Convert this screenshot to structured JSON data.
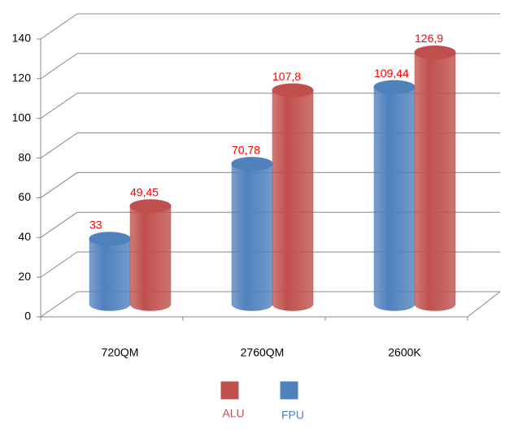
{
  "chart_data": {
    "type": "bar3d",
    "categories": [
      "720QM",
      "2760QM",
      "2600K"
    ],
    "series": [
      {
        "name": "FPU",
        "color": "#4f81bd",
        "values": [
          33,
          70.78,
          109.44
        ],
        "value_labels": [
          "33",
          "70,78",
          "109,44"
        ]
      },
      {
        "name": "ALU",
        "color": "#c0504d",
        "values": [
          49.45,
          107.8,
          126.9
        ],
        "value_labels": [
          "49,45",
          "107,8",
          "126,9"
        ]
      }
    ],
    "ylim": [
      0,
      140
    ],
    "yticks": [
      0,
      20,
      40,
      60,
      80,
      100,
      120,
      140
    ],
    "grid": true
  }
}
